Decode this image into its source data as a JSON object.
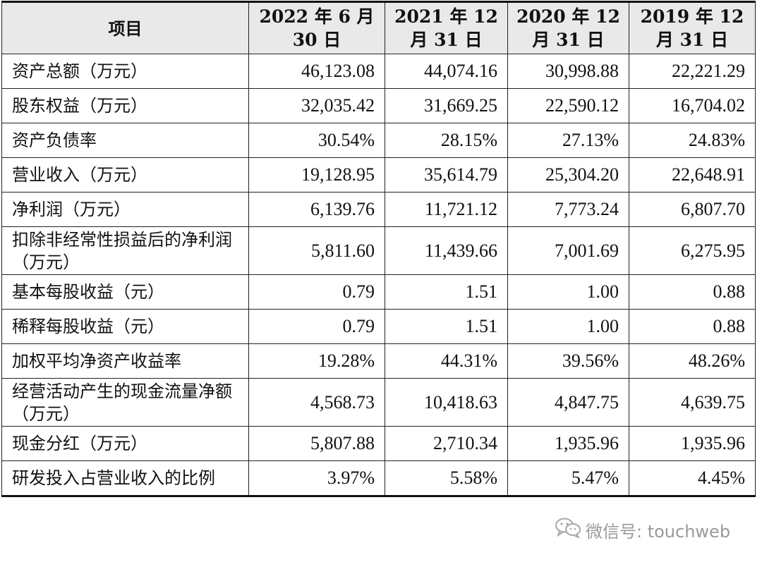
{
  "table": {
    "headers": [
      [
        "项目"
      ],
      [
        "2022 年 6 月",
        "30 日"
      ],
      [
        "2021 年 12",
        "月 31 日"
      ],
      [
        "2020 年 12",
        "月 31 日"
      ],
      [
        "2019 年 12",
        "月 31 日"
      ]
    ],
    "rows": [
      {
        "label": "资产总额（万元）",
        "values": [
          "46,123.08",
          "44,074.16",
          "30,998.88",
          "22,221.29"
        ]
      },
      {
        "label": "股东权益（万元）",
        "values": [
          "32,035.42",
          "31,669.25",
          "22,590.12",
          "16,704.02"
        ]
      },
      {
        "label": "资产负债率",
        "values": [
          "30.54%",
          "28.15%",
          "27.13%",
          "24.83%"
        ]
      },
      {
        "label": "营业收入（万元）",
        "values": [
          "19,128.95",
          "35,614.79",
          "25,304.20",
          "22,648.91"
        ]
      },
      {
        "label": "净利润（万元）",
        "values": [
          "6,139.76",
          "11,721.12",
          "7,773.24",
          "6,807.70"
        ]
      },
      {
        "label": "扣除非经常性损益后的净利润（万元）",
        "values": [
          "5,811.60",
          "11,439.66",
          "7,001.69",
          "6,275.95"
        ]
      },
      {
        "label": "基本每股收益（元）",
        "values": [
          "0.79",
          "1.51",
          "1.00",
          "0.88"
        ]
      },
      {
        "label": "稀释每股收益（元）",
        "values": [
          "0.79",
          "1.51",
          "1.00",
          "0.88"
        ]
      },
      {
        "label": "加权平均净资产收益率",
        "values": [
          "19.28%",
          "44.31%",
          "39.56%",
          "48.26%"
        ]
      },
      {
        "label": "经营活动产生的现金流量净额（万元）",
        "values": [
          "4,568.73",
          "10,418.63",
          "4,847.75",
          "4,639.75"
        ]
      },
      {
        "label": "现金分红（万元）",
        "values": [
          "5,807.88",
          "2,710.34",
          "1,935.96",
          "1,935.96"
        ]
      },
      {
        "label": "研发投入占营业收入的比例",
        "values": [
          "3.97%",
          "5.58%",
          "5.47%",
          "4.45%"
        ]
      }
    ]
  },
  "watermark": {
    "text": "微信号: touchweb",
    "icon": "wechat-icon"
  }
}
